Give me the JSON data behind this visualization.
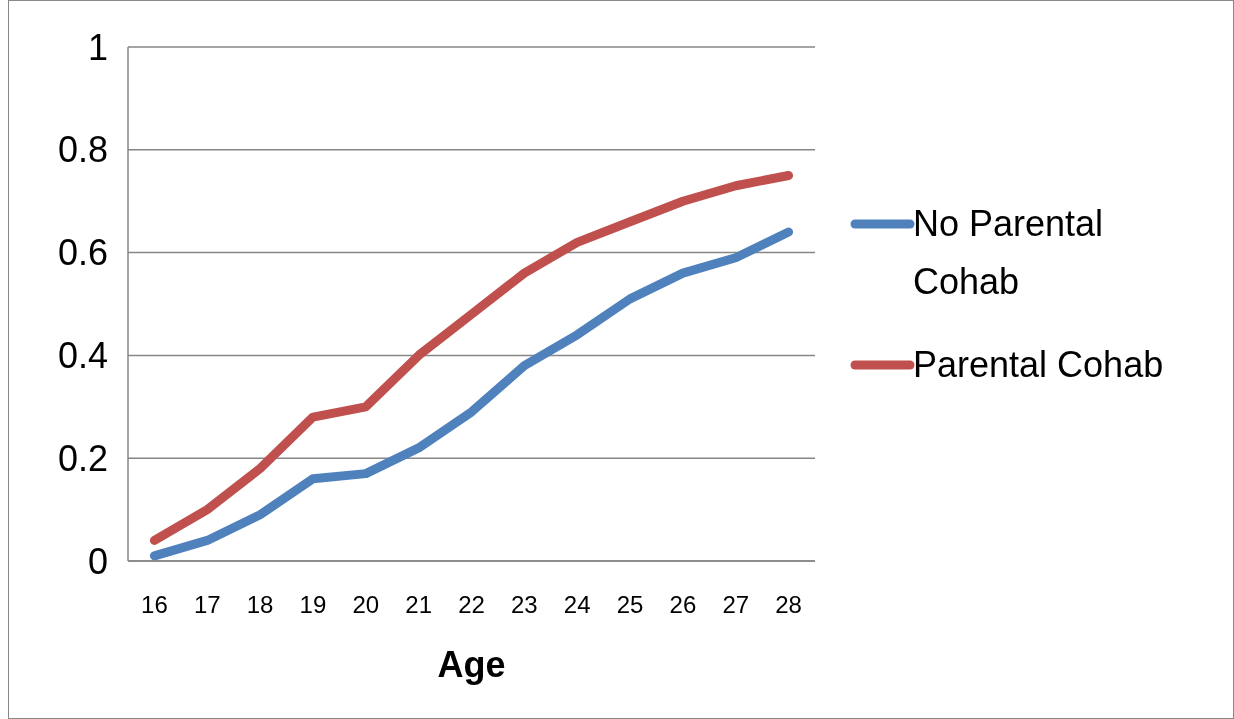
{
  "chart_data": {
    "type": "line",
    "xlabel": "Age",
    "categories": [
      "16",
      "17",
      "18",
      "19",
      "20",
      "21",
      "22",
      "23",
      "24",
      "25",
      "26",
      "27",
      "28"
    ],
    "series": [
      {
        "name": "No Parental Cohab",
        "color": "#4f81bd",
        "values": [
          0.01,
          0.04,
          0.09,
          0.16,
          0.17,
          0.22,
          0.29,
          0.38,
          0.44,
          0.51,
          0.56,
          0.59,
          0.64
        ]
      },
      {
        "name": "Parental Cohab",
        "color": "#c0504d",
        "values": [
          0.04,
          0.1,
          0.18,
          0.28,
          0.3,
          0.4,
          0.48,
          0.56,
          0.62,
          0.66,
          0.7,
          0.73,
          0.75
        ]
      }
    ],
    "ylim": [
      0,
      1
    ],
    "yticks": [
      0,
      0.2,
      0.4,
      0.6,
      0.8,
      1
    ],
    "grid": "y",
    "legend": "right",
    "marker": "none",
    "line_style": "solid"
  }
}
